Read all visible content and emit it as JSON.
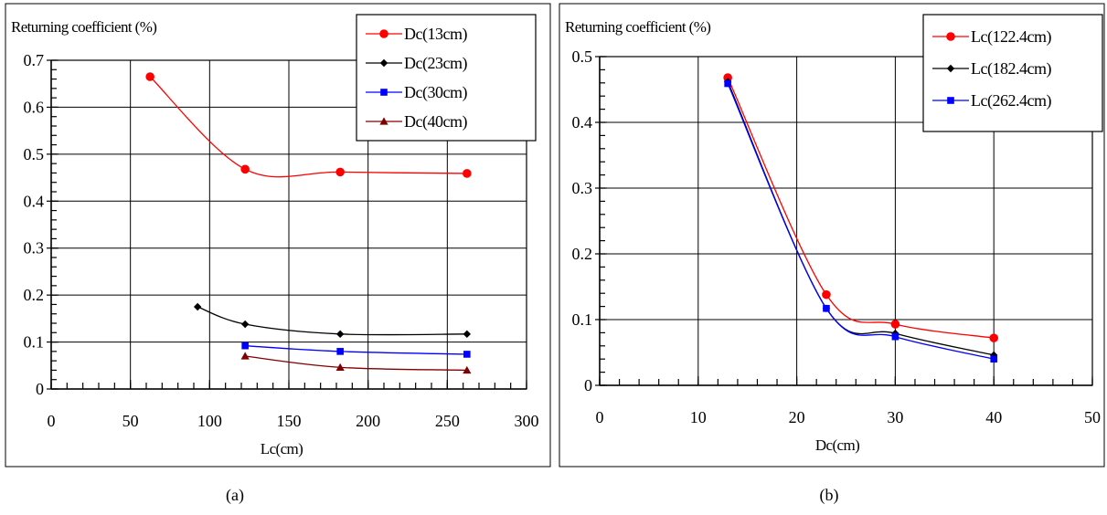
{
  "chart_data": [
    {
      "type": "line",
      "caption": "(a)",
      "title": "",
      "ylabel": "Returning coefficient (%)",
      "xlabel": "Lc(cm)",
      "xlim": [
        0,
        300
      ],
      "ylim": [
        0,
        0.7
      ],
      "xticks": [
        0,
        50,
        100,
        150,
        200,
        250,
        300
      ],
      "xtick_labels": [
        "0",
        "50",
        "100",
        "150",
        "200",
        "250",
        "300"
      ],
      "yticks": [
        0,
        0.1,
        0.2,
        0.3,
        0.4,
        0.5,
        0.6,
        0.7
      ],
      "ytick_labels": [
        "0",
        "0.1",
        "0.2",
        "0.3",
        "0.4",
        "0.5",
        "0.6",
        "0.7"
      ],
      "x_minor_step": 10,
      "y_minor_step": 0.02,
      "grid": true,
      "legend_position": "top-right",
      "series": [
        {
          "name": "Dc(13cm)",
          "color": "#ff0000",
          "marker": "circle",
          "x": [
            62.4,
            122.4,
            182.4,
            262.4
          ],
          "y": [
            0.665,
            0.468,
            0.462,
            0.459
          ]
        },
        {
          "name": "Dc(23cm)",
          "color": "#000000",
          "marker": "diamond",
          "x": [
            92.4,
            122.4,
            182.4,
            262.4
          ],
          "y": [
            0.175,
            0.138,
            0.117,
            0.117
          ]
        },
        {
          "name": "Dc(30cm)",
          "color": "#0000ff",
          "marker": "square",
          "x": [
            122.4,
            182.4,
            262.4
          ],
          "y": [
            0.092,
            0.08,
            0.074
          ]
        },
        {
          "name": "Dc(40cm)",
          "color": "#800000",
          "marker": "triangle",
          "x": [
            122.4,
            182.4,
            262.4
          ],
          "y": [
            0.07,
            0.046,
            0.04
          ]
        }
      ]
    },
    {
      "type": "line",
      "caption": "(b)",
      "title": "",
      "ylabel": "Returning coefficient (%)",
      "xlabel": "Dc(cm)",
      "xlim": [
        0,
        50
      ],
      "ylim": [
        0,
        0.5
      ],
      "xticks": [
        0,
        10,
        20,
        30,
        40,
        50
      ],
      "xtick_labels": [
        "0",
        "10",
        "20",
        "30",
        "40",
        "50"
      ],
      "yticks": [
        0,
        0.1,
        0.2,
        0.3,
        0.4,
        0.5
      ],
      "ytick_labels": [
        "0",
        "0.1",
        "0.2",
        "0.3",
        "0.4",
        "0.5"
      ],
      "x_minor_step": 2,
      "y_minor_step": 0.02,
      "grid": true,
      "legend_position": "top-right",
      "series": [
        {
          "name": "Lc(122.4cm)",
          "color": "#ff0000",
          "marker": "circle",
          "x": [
            13,
            23,
            30,
            40
          ],
          "y": [
            0.468,
            0.138,
            0.093,
            0.072
          ]
        },
        {
          "name": "Lc(182.4cm)",
          "color": "#000000",
          "marker": "diamond",
          "x": [
            13,
            23,
            30,
            40
          ],
          "y": [
            0.462,
            0.117,
            0.079,
            0.046
          ]
        },
        {
          "name": "Lc(262.4cm)",
          "color": "#0000ff",
          "marker": "square",
          "x": [
            13,
            23,
            30,
            40
          ],
          "y": [
            0.459,
            0.117,
            0.074,
            0.04
          ]
        }
      ]
    }
  ]
}
